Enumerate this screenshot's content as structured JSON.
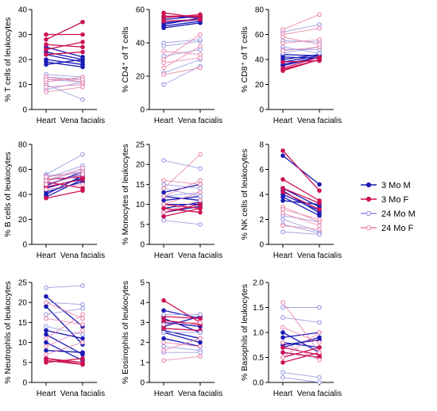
{
  "legend": {
    "entries": [
      {
        "label": "3 Mo M",
        "color": "#1a1ab5",
        "filled": true
      },
      {
        "label": "3 Mo F",
        "color": "#cc1155",
        "filled": true
      },
      {
        "label": "24 Mo M",
        "color": "#8f8fe0",
        "filled": false
      },
      {
        "label": "24 Mo F",
        "color": "#e87aa6",
        "filled": false
      }
    ]
  },
  "chart_data": [
    {
      "type": "line",
      "ylabel": "% T cells of leukocytes",
      "categories": [
        "Heart",
        "Vena facialis"
      ],
      "ylim": [
        0,
        40
      ],
      "yticks": [
        0,
        10,
        20,
        30,
        40
      ],
      "series": [
        {
          "name": "3 Mo M",
          "pairs": [
            [
              25,
              21
            ],
            [
              23,
              20
            ],
            [
              20,
              18
            ],
            [
              19,
              17
            ],
            [
              18,
              20
            ],
            [
              22,
              19
            ]
          ]
        },
        {
          "name": "3 Mo F",
          "pairs": [
            [
              30,
              30
            ],
            [
              28,
              35
            ],
            [
              24,
              27
            ],
            [
              26,
              25
            ],
            [
              22,
              23
            ]
          ]
        },
        {
          "name": "24 Mo M",
          "pairs": [
            [
              13,
              12
            ],
            [
              12,
              11
            ],
            [
              10,
              4
            ],
            [
              14,
              13
            ],
            [
              8,
              11
            ]
          ]
        },
        {
          "name": "24 Mo F",
          "pairs": [
            [
              11,
              13
            ],
            [
              9,
              10
            ],
            [
              7,
              9
            ],
            [
              13,
              11
            ],
            [
              12,
              12
            ]
          ]
        }
      ]
    },
    {
      "type": "line",
      "ylabel": "% CD4⁺ of T cells",
      "categories": [
        "Heart",
        "Vena facialis"
      ],
      "ylim": [
        0,
        60
      ],
      "yticks": [
        0,
        20,
        40,
        60
      ],
      "series": [
        {
          "name": "3 Mo M",
          "pairs": [
            [
              56,
              55
            ],
            [
              54,
              56
            ],
            [
              52,
              54
            ],
            [
              51,
              55
            ],
            [
              50,
              53
            ],
            [
              49,
              52
            ]
          ]
        },
        {
          "name": "3 Mo F",
          "pairs": [
            [
              58,
              55
            ],
            [
              55,
              57
            ],
            [
              53,
              54
            ],
            [
              56,
              56
            ]
          ]
        },
        {
          "name": "24 Mo M",
          "pairs": [
            [
              15,
              26
            ],
            [
              22,
              30
            ],
            [
              32,
              36
            ],
            [
              38,
              41
            ],
            [
              40,
              42
            ]
          ]
        },
        {
          "name": "24 Mo F",
          "pairs": [
            [
              21,
              25
            ],
            [
              25,
              38
            ],
            [
              28,
              31
            ],
            [
              35,
              33
            ],
            [
              30,
              45
            ]
          ]
        }
      ]
    },
    {
      "type": "line",
      "ylabel": "% CD8⁺ of T cells",
      "categories": [
        "Heart",
        "Vena facialis"
      ],
      "ylim": [
        0,
        80
      ],
      "yticks": [
        0,
        20,
        40,
        60,
        80
      ],
      "series": [
        {
          "name": "3 Mo M",
          "pairs": [
            [
              36,
              42
            ],
            [
              38,
              43
            ],
            [
              40,
              44
            ],
            [
              35,
              42
            ],
            [
              42,
              41
            ],
            [
              44,
              43
            ]
          ]
        },
        {
          "name": "3 Mo F",
          "pairs": [
            [
              32,
              40
            ],
            [
              33,
              42
            ],
            [
              31,
              40
            ],
            [
              38,
              39
            ]
          ]
        },
        {
          "name": "24 Mo M",
          "pairs": [
            [
              62,
              68
            ],
            [
              55,
              54
            ],
            [
              50,
              45
            ],
            [
              45,
              50
            ],
            [
              48,
              48
            ]
          ]
        },
        {
          "name": "24 Mo F",
          "pairs": [
            [
              64,
              76
            ],
            [
              60,
              65
            ],
            [
              53,
              56
            ],
            [
              47,
              50
            ],
            [
              58,
              52
            ]
          ]
        }
      ]
    },
    {
      "type": "line",
      "ylabel": "% B cells of leukocytes",
      "categories": [
        "Heart",
        "Vena facialis"
      ],
      "ylim": [
        0,
        80
      ],
      "yticks": [
        0,
        20,
        40,
        60,
        80
      ],
      "series": [
        {
          "name": "3 Mo M",
          "pairs": [
            [
              48,
              56
            ],
            [
              45,
              53
            ],
            [
              47,
              58
            ],
            [
              40,
              55
            ],
            [
              38,
              52
            ],
            [
              42,
              50
            ]
          ]
        },
        {
          "name": "3 Mo F",
          "pairs": [
            [
              52,
              54
            ],
            [
              50,
              45
            ],
            [
              37,
              43
            ],
            [
              46,
              52
            ]
          ]
        },
        {
          "name": "24 Mo M",
          "pairs": [
            [
              56,
              72
            ],
            [
              53,
              63
            ],
            [
              50,
              60
            ],
            [
              55,
              57
            ]
          ]
        },
        {
          "name": "24 Mo F",
          "pairs": [
            [
              54,
              58
            ],
            [
              48,
              56
            ],
            [
              44,
              48
            ],
            [
              51,
              61
            ]
          ]
        }
      ]
    },
    {
      "type": "line",
      "ylabel": "% Monocytes of leukocytes",
      "categories": [
        "Heart",
        "Vena facialis"
      ],
      "ylim": [
        0,
        25
      ],
      "yticks": [
        0,
        5,
        10,
        15,
        20,
        25
      ],
      "series": [
        {
          "name": "3 Mo M",
          "pairs": [
            [
              13,
              15
            ],
            [
              12,
              11
            ],
            [
              10,
              10
            ],
            [
              9,
              10.5
            ],
            [
              11,
              12
            ],
            [
              8,
              9.5
            ]
          ]
        },
        {
          "name": "3 Mo F",
          "pairs": [
            [
              9,
              8
            ],
            [
              7,
              9
            ],
            [
              8,
              10
            ],
            [
              10,
              9
            ]
          ]
        },
        {
          "name": "24 Mo M",
          "pairs": [
            [
              21,
              19
            ],
            [
              15,
              14
            ],
            [
              14,
              12
            ],
            [
              6,
              5
            ],
            [
              12,
              13
            ]
          ]
        },
        {
          "name": "24 Mo F",
          "pairs": [
            [
              16,
              15
            ],
            [
              14,
              22.5
            ],
            [
              10,
              13
            ],
            [
              8,
              11
            ],
            [
              12,
              16
            ]
          ]
        }
      ]
    },
    {
      "type": "line",
      "ylabel": "% NK cells of leukocytes",
      "categories": [
        "Heart",
        "Vena facialis"
      ],
      "ylim": [
        0,
        8
      ],
      "yticks": [
        0,
        2,
        4,
        6,
        8
      ],
      "series": [
        {
          "name": "3 Mo M",
          "pairs": [
            [
              7.1,
              4.8
            ],
            [
              4.5,
              3.0
            ],
            [
              4.3,
              2.5
            ],
            [
              3.8,
              2.3
            ],
            [
              4.0,
              2.7
            ],
            [
              3.5,
              3.2
            ]
          ]
        },
        {
          "name": "3 Mo F",
          "pairs": [
            [
              7.5,
              4.3
            ],
            [
              5.2,
              3.5
            ],
            [
              4.5,
              3.3
            ],
            [
              4.2,
              2.8
            ]
          ]
        },
        {
          "name": "24 Mo M",
          "pairs": [
            [
              2.0,
              1.0
            ],
            [
              1.6,
              0.9
            ],
            [
              1.0,
              0.8
            ],
            [
              2.3,
              1.8
            ]
          ]
        },
        {
          "name": "24 Mo F",
          "pairs": [
            [
              2.5,
              1.5
            ],
            [
              3.0,
              1.8
            ],
            [
              1.5,
              1.2
            ],
            [
              2.8,
              2.0
            ]
          ]
        }
      ]
    },
    {
      "type": "line",
      "ylabel": "% Neutrophils of leukocytes",
      "categories": [
        "Heart",
        "Vena facialis"
      ],
      "ylim": [
        0,
        25
      ],
      "yticks": [
        0,
        5,
        10,
        15,
        20,
        25
      ],
      "series": [
        {
          "name": "3 Mo M",
          "pairs": [
            [
              21.5,
              14
            ],
            [
              19,
              9.5
            ],
            [
              13,
              11
            ],
            [
              12,
              7
            ],
            [
              10,
              5.5
            ],
            [
              8,
              7.5
            ]
          ]
        },
        {
          "name": "3 Mo F",
          "pairs": [
            [
              6,
              5
            ],
            [
              5.5,
              4.5
            ],
            [
              5,
              6
            ],
            [
              6,
              4.5
            ]
          ]
        },
        {
          "name": "24 Mo M",
          "pairs": [
            [
              23.7,
              24.2
            ],
            [
              20,
              19.5
            ],
            [
              14,
              12
            ],
            [
              17,
              18.5
            ]
          ]
        },
        {
          "name": "24 Mo F",
          "pairs": [
            [
              16,
              14.5
            ],
            [
              20,
              16
            ],
            [
              9,
              13
            ],
            [
              7,
              10
            ],
            [
              11,
              17
            ]
          ]
        }
      ]
    },
    {
      "type": "line",
      "ylabel": "% Eosinophils of leukocytes",
      "categories": [
        "Heart",
        "Vena facialis"
      ],
      "ylim": [
        0,
        5
      ],
      "yticks": [
        0,
        1,
        2,
        3,
        4,
        5
      ],
      "series": [
        {
          "name": "3 Mo M",
          "pairs": [
            [
              3.6,
              3.2
            ],
            [
              3.2,
              2.5
            ],
            [
              3.0,
              2.8
            ],
            [
              2.8,
              3.3
            ],
            [
              2.5,
              2.0
            ],
            [
              2.2,
              1.8
            ],
            [
              2.6,
              2.2
            ]
          ]
        },
        {
          "name": "3 Mo F",
          "pairs": [
            [
              4.1,
              3.0
            ],
            [
              3.1,
              2.9
            ],
            [
              2.7,
              2.6
            ],
            [
              3.3,
              3.2
            ]
          ]
        },
        {
          "name": "24 Mo M",
          "pairs": [
            [
              1.8,
              1.6
            ],
            [
              2.5,
              2.5
            ],
            [
              3.4,
              3.4
            ],
            [
              1.5,
              1.5
            ]
          ]
        },
        {
          "name": "24 Mo F",
          "pairs": [
            [
              1.1,
              1.3
            ],
            [
              2.0,
              1.8
            ],
            [
              1.6,
              2.2
            ],
            [
              2.9,
              3.0
            ]
          ]
        }
      ]
    },
    {
      "type": "line",
      "ylabel": "% Basophils of leukocytes",
      "categories": [
        "Heart",
        "Vena facialis"
      ],
      "ylim": [
        0,
        2.0
      ],
      "yticks": [
        0.0,
        0.5,
        1.0,
        1.5,
        2.0
      ],
      "series": [
        {
          "name": "3 Mo M",
          "pairs": [
            [
              0.9,
              1.0
            ],
            [
              0.8,
              0.7
            ],
            [
              0.7,
              0.9
            ],
            [
              1.0,
              0.6
            ],
            [
              0.6,
              0.5
            ],
            [
              0.75,
              0.85
            ]
          ]
        },
        {
          "name": "3 Mo F",
          "pairs": [
            [
              0.4,
              0.6
            ],
            [
              0.5,
              0.7
            ],
            [
              0.6,
              0.5
            ],
            [
              0.7,
              0.55
            ]
          ]
        },
        {
          "name": "24 Mo M",
          "pairs": [
            [
              1.5,
              1.5
            ],
            [
              0.2,
              0.1
            ],
            [
              1.3,
              1.2
            ],
            [
              0.1,
              0.0
            ]
          ]
        },
        {
          "name": "24 Mo F",
          "pairs": [
            [
              1.6,
              0.6
            ],
            [
              1.1,
              0.8
            ],
            [
              0.8,
              0.45
            ],
            [
              0.5,
              1.0
            ]
          ]
        }
      ]
    }
  ]
}
